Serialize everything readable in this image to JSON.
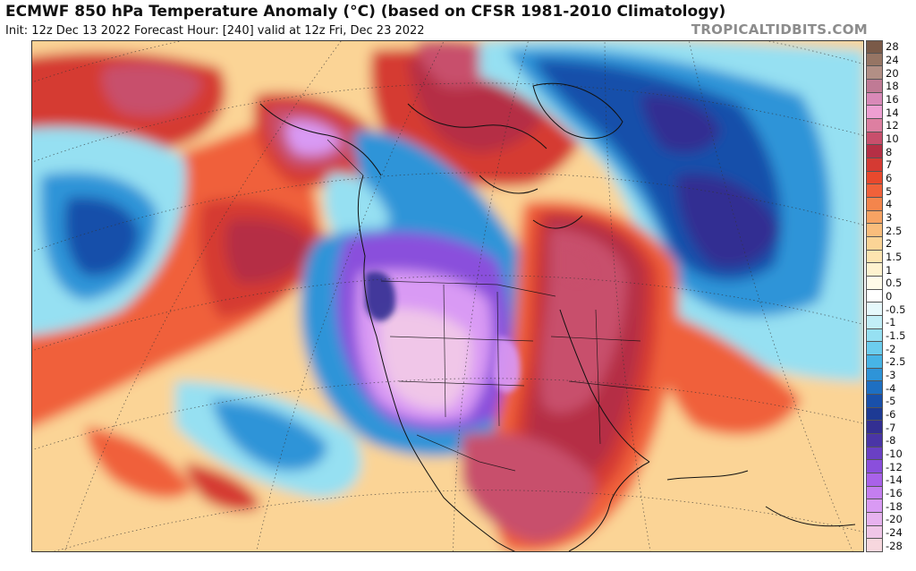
{
  "header": {
    "title": "ECMWF 850 hPa Temperature Anomaly (°C) (based on CFSR 1981-2010 Climatology)",
    "subtitle": "Init: 12z Dec 13 2022   Forecast Hour: [240]   valid at 12z Fri, Dec 23 2022",
    "brand": "TROPICALTIDBITS.COM"
  },
  "colorbar": {
    "levels": [
      {
        "label": "28",
        "color": "#7a5a48"
      },
      {
        "label": "24",
        "color": "#967564"
      },
      {
        "label": "20",
        "color": "#b28f85"
      },
      {
        "label": "18",
        "color": "#c07a95"
      },
      {
        "label": "16",
        "color": "#d989b8"
      },
      {
        "label": "14",
        "color": "#ee9fd2"
      },
      {
        "label": "12",
        "color": "#dd7fa1"
      },
      {
        "label": "10",
        "color": "#c84f6c"
      },
      {
        "label": "8",
        "color": "#b52f45"
      },
      {
        "label": "7",
        "color": "#d53a33"
      },
      {
        "label": "6",
        "color": "#e8492d"
      },
      {
        "label": "5",
        "color": "#f0613a"
      },
      {
        "label": "4",
        "color": "#f4854c"
      },
      {
        "label": "3",
        "color": "#f7a363"
      },
      {
        "label": "2.5",
        "color": "#f9bd7c"
      },
      {
        "label": "2",
        "color": "#fbd496"
      },
      {
        "label": "1.5",
        "color": "#fde4b0"
      },
      {
        "label": "1",
        "color": "#fef2cf"
      },
      {
        "label": "0.5",
        "color": "#fffbe9"
      },
      {
        "label": "0",
        "color": "#ffffff"
      },
      {
        "label": "-0.5",
        "color": "#e6f8fb"
      },
      {
        "label": "-1",
        "color": "#c2eef7"
      },
      {
        "label": "-1.5",
        "color": "#96e0f2"
      },
      {
        "label": "-2",
        "color": "#6ccdee"
      },
      {
        "label": "-2.5",
        "color": "#47b4e6"
      },
      {
        "label": "-3",
        "color": "#2e94d8"
      },
      {
        "label": "-4",
        "color": "#1e6fc2"
      },
      {
        "label": "-5",
        "color": "#1950aa"
      },
      {
        "label": "-6",
        "color": "#1d3a94"
      },
      {
        "label": "-7",
        "color": "#332f92"
      },
      {
        "label": "-8",
        "color": "#4a35a6"
      },
      {
        "label": "-10",
        "color": "#6a40c4"
      },
      {
        "label": "-12",
        "color": "#8a4fdc"
      },
      {
        "label": "-14",
        "color": "#a962e9"
      },
      {
        "label": "-16",
        "color": "#c47ef0"
      },
      {
        "label": "-18",
        "color": "#d99af4"
      },
      {
        "label": "-20",
        "color": "#e7b2ef"
      },
      {
        "label": "-24",
        "color": "#f0c6e8"
      },
      {
        "label": "-28",
        "color": "#f7d7de"
      }
    ]
  },
  "map_colors": {
    "warm_light": "#fbd496",
    "warm_orange": "#f0613a",
    "warm_red": "#d53a33",
    "warm_dark": "#b52f45",
    "warm_rose": "#c84f6c",
    "cold_light": "#96e0f2",
    "cold_mid": "#2e94d8",
    "cold_dark": "#1950aa",
    "cold_deep": "#332f92",
    "cold_violet": "#8a4fdc",
    "cold_lilac": "#d99af4",
    "cold_pink": "#f0c6e8"
  }
}
